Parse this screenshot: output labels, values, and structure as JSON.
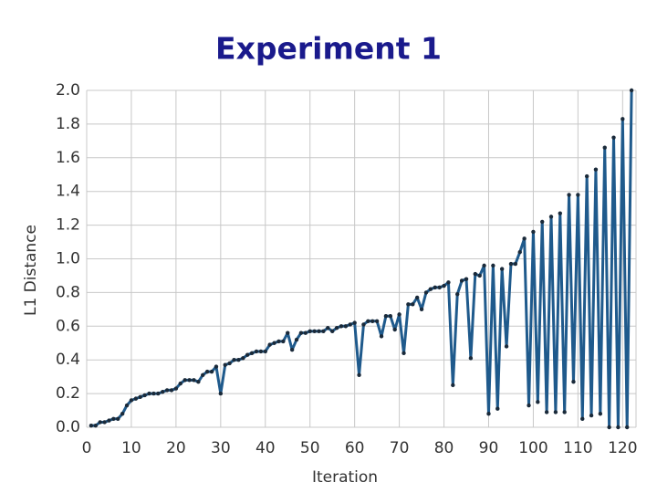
{
  "chart_data": {
    "type": "line",
    "title": "Experiment 1",
    "x_label": "Iteration",
    "y_label": "L1 Distance",
    "color": "#1f5a8c",
    "marker_color": "#1a2a3a",
    "grid": true,
    "xlim": [
      0,
      123
    ],
    "xticks": [
      0,
      10,
      20,
      30,
      40,
      50,
      60,
      70,
      80,
      90,
      100,
      110,
      120
    ],
    "ylim": [
      0,
      2
    ],
    "yticks": [
      {
        "value": 0,
        "label": "0.0"
      },
      0.2,
      0.4,
      0.6,
      0.8,
      {
        "value": 1,
        "label": "1.0"
      },
      1.2,
      1.4,
      1.6,
      1.8,
      {
        "value": 2,
        "label": "2.0"
      }
    ],
    "x": [
      1,
      2,
      3,
      4,
      5,
      6,
      7,
      8,
      9,
      10,
      11,
      12,
      13,
      14,
      15,
      16,
      17,
      18,
      19,
      20,
      21,
      22,
      23,
      24,
      25,
      26,
      27,
      28,
      29,
      30,
      31,
      32,
      33,
      34,
      35,
      36,
      37,
      38,
      39,
      40,
      41,
      42,
      43,
      44,
      45,
      46,
      47,
      48,
      49,
      50,
      51,
      52,
      53,
      54,
      55,
      56,
      57,
      58,
      59,
      60,
      61,
      62,
      63,
      64,
      65,
      66,
      67,
      68,
      69,
      70,
      71,
      72,
      73,
      74,
      75,
      76,
      77,
      78,
      79,
      80,
      81,
      82,
      83,
      84,
      85,
      86,
      87,
      88,
      89,
      90,
      91,
      92,
      93,
      94,
      95,
      96,
      97,
      98,
      99,
      100,
      101,
      102,
      103,
      104,
      105,
      106,
      107,
      108,
      109,
      110,
      111,
      112,
      113,
      114,
      115,
      116,
      117,
      118,
      119,
      120,
      121,
      122
    ],
    "values": [
      0.01,
      0.01,
      0.03,
      0.03,
      0.04,
      0.05,
      0.05,
      0.08,
      0.13,
      0.16,
      0.17,
      0.18,
      0.19,
      0.2,
      0.2,
      0.2,
      0.21,
      0.22,
      0.22,
      0.23,
      0.26,
      0.28,
      0.28,
      0.28,
      0.27,
      0.31,
      0.33,
      0.33,
      0.36,
      0.2,
      0.37,
      0.38,
      0.4,
      0.4,
      0.41,
      0.43,
      0.44,
      0.45,
      0.45,
      0.45,
      0.49,
      0.5,
      0.51,
      0.51,
      0.56,
      0.46,
      0.52,
      0.56,
      0.56,
      0.57,
      0.57,
      0.57,
      0.57,
      0.59,
      0.57,
      0.59,
      0.6,
      0.6,
      0.61,
      0.62,
      0.31,
      0.61,
      0.63,
      0.63,
      0.63,
      0.54,
      0.66,
      0.66,
      0.58,
      0.67,
      0.44,
      0.73,
      0.73,
      0.77,
      0.7,
      0.8,
      0.82,
      0.83,
      0.83,
      0.84,
      0.86,
      0.25,
      0.79,
      0.87,
      0.88,
      0.41,
      0.91,
      0.9,
      0.96,
      0.08,
      0.96,
      0.11,
      0.94,
      0.48,
      0.97,
      0.97,
      1.04,
      1.12,
      0.13,
      1.16,
      0.15,
      1.22,
      0.09,
      1.25,
      0.09,
      1.27,
      0.09,
      1.38,
      0.27,
      1.38,
      0.05,
      1.49,
      0.07,
      1.53,
      0.08,
      1.66,
      0.0,
      1.72,
      0.0,
      1.83,
      0.0,
      2.0
    ]
  }
}
